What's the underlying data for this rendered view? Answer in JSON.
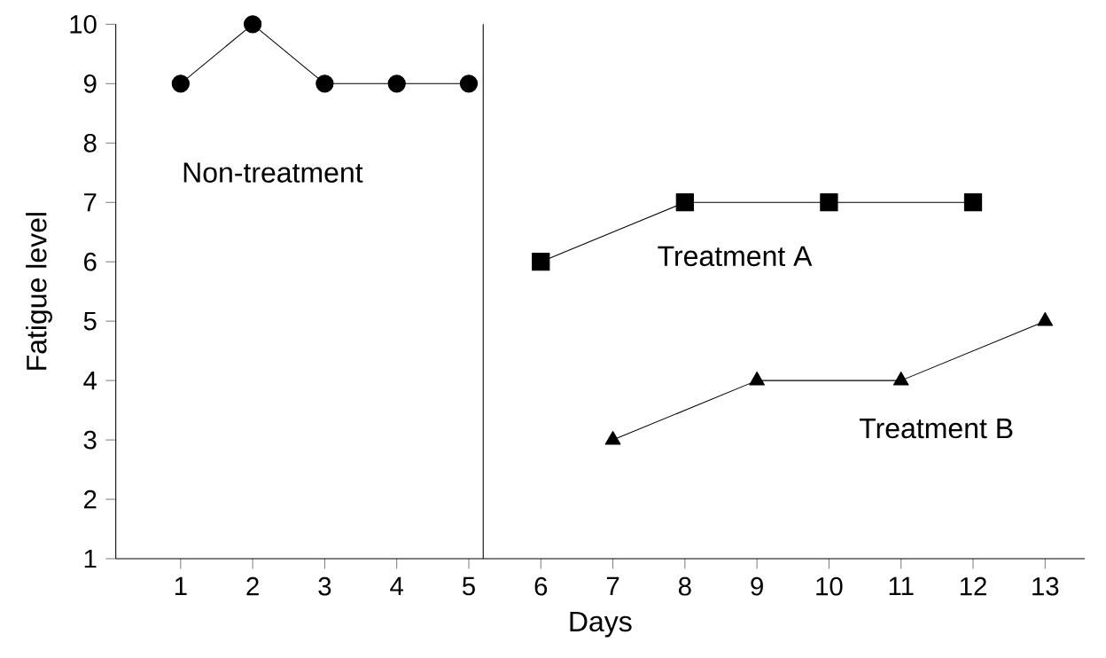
{
  "chart_data": {
    "type": "line",
    "xlabel": "Days",
    "ylabel": "Fatigue level",
    "xlim": [
      0.1,
      13.55
    ],
    "ylim": [
      1,
      10
    ],
    "xticks": [
      1,
      2,
      3,
      4,
      5,
      6,
      7,
      8,
      9,
      10,
      11,
      12,
      13
    ],
    "yticks": [
      1,
      2,
      3,
      4,
      5,
      6,
      7,
      8,
      9,
      10
    ],
    "grid": false,
    "line_style": "solid",
    "series": [
      {
        "name": "Non-treatment",
        "color": "#000000",
        "marker": "circle",
        "x": [
          1,
          2,
          3,
          4,
          5
        ],
        "values": [
          9,
          10,
          9,
          9,
          9
        ]
      },
      {
        "name": "Treatment A",
        "color": "#000000",
        "marker": "square",
        "x": [
          6,
          8,
          10,
          12
        ],
        "values": [
          6,
          7,
          7,
          7
        ]
      },
      {
        "name": "Treatment B",
        "color": "#000000",
        "marker": "triangle",
        "x": [
          7,
          9,
          11,
          13
        ],
        "values": [
          3,
          4,
          4,
          5
        ]
      }
    ],
    "ref_lines": [
      {
        "axis": "x",
        "value": 5.2,
        "color": "#000000"
      }
    ]
  }
}
